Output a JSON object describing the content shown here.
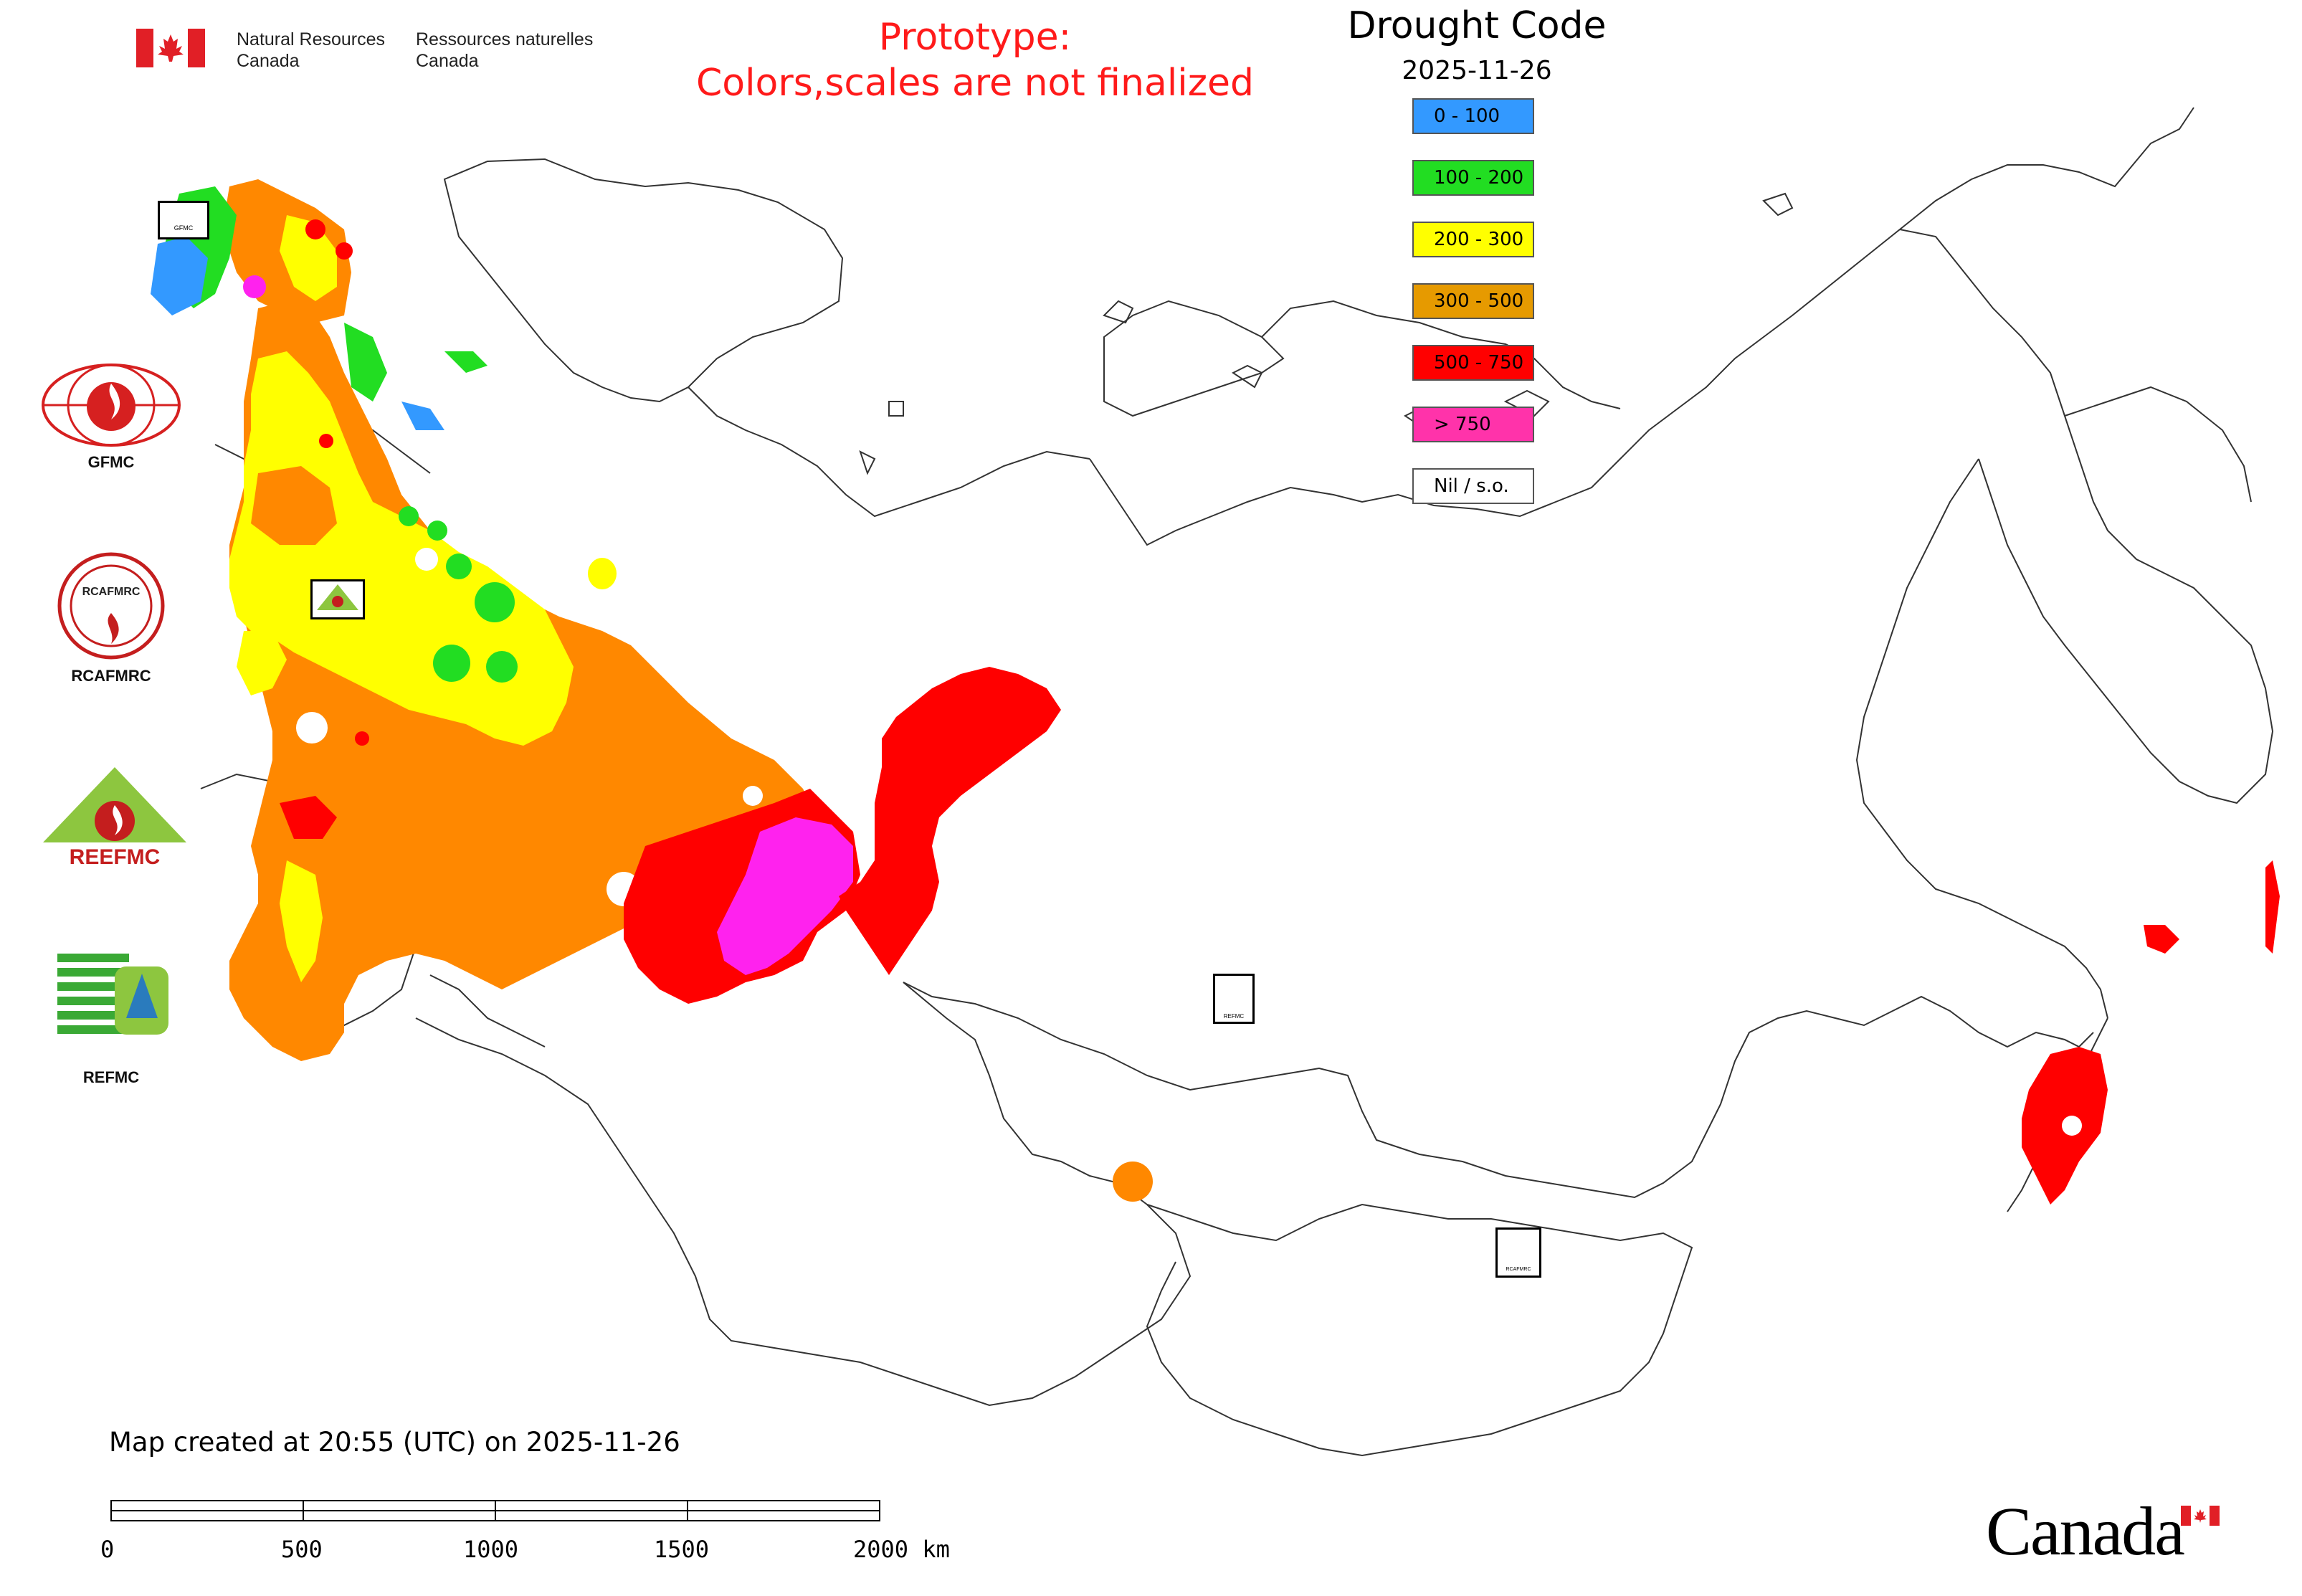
{
  "header": {
    "org_en_line1": "Natural Resources",
    "org_en_line2": "Canada",
    "org_fr_line1": "Ressources naturelles",
    "org_fr_line2": "Canada",
    "prototype_line1": "Prototype:",
    "prototype_line2": "Colors,scales are not finalized"
  },
  "legend": {
    "title": "Drought Code",
    "date": "2025-11-26",
    "classes": [
      {
        "label": "0 - 100",
        "color": "#3399ff"
      },
      {
        "label": "100 - 200",
        "color": "#22dd22"
      },
      {
        "label": "200 - 300",
        "color": "#ffff00"
      },
      {
        "label": "300 - 500",
        "color": "#e69a00"
      },
      {
        "label": "500 - 750",
        "color": "#ff0000"
      },
      {
        "label": "> 750",
        "color": "#ff33aa"
      },
      {
        "label": "Nil / s.o.",
        "color": "#ffffff"
      }
    ]
  },
  "logos": [
    {
      "label": "GFMC",
      "icon": "gfmc-logo-icon"
    },
    {
      "label": "RCAFMRC",
      "icon": "rcafmrc-logo-icon"
    },
    {
      "label": "",
      "icon": "reefmc-logo-icon",
      "wordmark": "REEFMC"
    },
    {
      "label": "REFMC",
      "icon": "refmc-logo-icon"
    }
  ],
  "map_markers": {
    "gfmc": "GFMC",
    "reefmc": "REEFMC",
    "refmc": "REFMC",
    "rcafmrc": "RCAFMRC"
  },
  "footer": {
    "created": "Map created at 20:55 (UTC) on 2025-11-26",
    "scale_labels": [
      "0",
      "500",
      "1000",
      "1500",
      "2000 km"
    ],
    "canada_wordmark": "Canada"
  },
  "colors": {
    "orange": "#ff8800",
    "red": "#ff0000",
    "magenta": "#ff22ee",
    "yellow": "#ffff00",
    "green": "#22dd22",
    "blue": "#3399ff",
    "title_red": "#ff1a1a"
  }
}
